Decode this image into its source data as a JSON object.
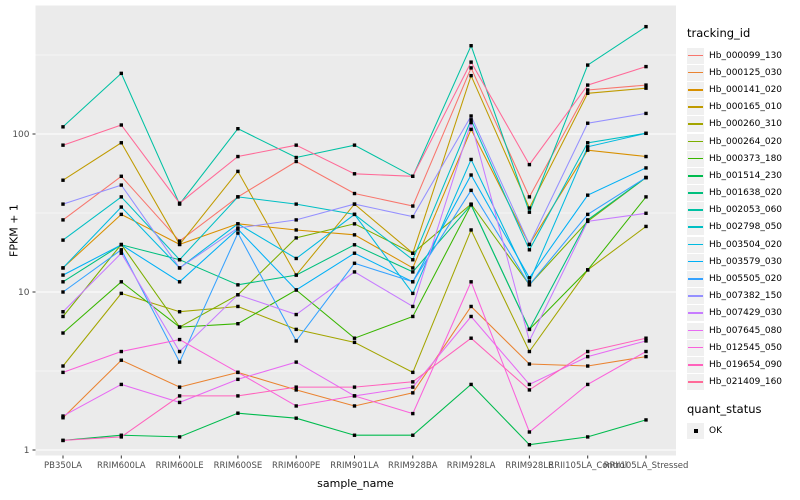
{
  "chart_data": {
    "type": "line",
    "title": "",
    "xlabel": "sample_name",
    "ylabel": "FPKM + 1",
    "y_scale": "log10",
    "y_ticks": [
      1,
      10,
      100
    ],
    "y_minor_ticks": [
      3.162,
      31.62,
      316.2
    ],
    "ylim": [
      0.93,
      700
    ],
    "grid": true,
    "legend_position": "right",
    "legend_title": "tracking_id",
    "x_categories": [
      "PB350LA",
      "RRIM600LA",
      "RRIM600LE",
      "RRIM600SE",
      "RRIM600PE",
      "RRIM901LA",
      "RRIM928BA",
      "RRIM928LA",
      "RRIM928LE",
      "RRII105LA_Control",
      "RRII105LA_Stressed"
    ],
    "series": [
      {
        "name": "Hb_000099_130",
        "color": "#F8766D",
        "values": [
          28.6,
          54,
          21,
          40,
          67,
          42,
          35,
          262,
          40,
          190,
          204
        ]
      },
      {
        "name": "Hb_000125_030",
        "color": "#EA8331",
        "values": [
          1.6,
          3.7,
          2.5,
          3.1,
          2.4,
          1.9,
          2.3,
          8.1,
          3.5,
          3.4,
          3.9
        ]
      },
      {
        "name": "Hb_000141_020",
        "color": "#D89000",
        "values": [
          14.2,
          31,
          20,
          27,
          24.7,
          23,
          14.2,
          107,
          20,
          79,
          72
        ]
      },
      {
        "name": "Hb_000165_010",
        "color": "#C09B00",
        "values": [
          51,
          88,
          20,
          58,
          12.8,
          36,
          17.6,
          234,
          34,
          181,
          195
        ]
      },
      {
        "name": "Hb_000260_310",
        "color": "#A3A500",
        "values": [
          3.4,
          9.8,
          7.5,
          8.1,
          5.8,
          4.8,
          3.1,
          24.7,
          4.2,
          13.8,
          26
        ]
      },
      {
        "name": "Hb_000264_020",
        "color": "#7CAE00",
        "values": [
          7.0,
          20,
          6.0,
          9.6,
          22,
          27,
          17.6,
          36,
          11.1,
          28,
          53
        ]
      },
      {
        "name": "Hb_000373_180",
        "color": "#39B600",
        "values": [
          5.5,
          11.6,
          6.0,
          6.3,
          10.3,
          5.1,
          7.0,
          35.6,
          5.8,
          13.8,
          40
        ]
      },
      {
        "name": "Hb_001514_230",
        "color": "#00BB4E",
        "values": [
          1.15,
          1.24,
          1.21,
          1.71,
          1.59,
          1.24,
          1.24,
          2.6,
          1.08,
          1.21,
          1.55
        ]
      },
      {
        "name": "Hb_001638_020",
        "color": "#00BF7D",
        "values": [
          11.6,
          19.9,
          16,
          11.1,
          12.8,
          19.9,
          13.4,
          35.6,
          5.8,
          28.6,
          53
        ]
      },
      {
        "name": "Hb_002053_060",
        "color": "#00C1A3",
        "values": [
          111,
          242,
          36,
          108,
          71,
          85,
          54,
          362,
          32,
          273,
          478
        ]
      },
      {
        "name": "Hb_002798_050",
        "color": "#00BFC4",
        "values": [
          21.3,
          40,
          16,
          40,
          36,
          31,
          16,
          123,
          18.5,
          88,
          101
        ]
      },
      {
        "name": "Hb_003504_020",
        "color": "#00BAE0",
        "values": [
          14.2,
          34.5,
          14.2,
          27,
          16.3,
          31,
          9.8,
          69,
          11.6,
          83,
          101
        ]
      },
      {
        "name": "Hb_003579_030",
        "color": "#00B0F6",
        "values": [
          12.8,
          19.9,
          11.6,
          25,
          10.3,
          17.6,
          11.6,
          55,
          12.3,
          41,
          61
        ]
      },
      {
        "name": "Hb_005505_020",
        "color": "#35A2FF",
        "values": [
          10.0,
          18.5,
          3.6,
          23.6,
          4.9,
          15.2,
          11.6,
          44,
          11.1,
          31,
          53
        ]
      },
      {
        "name": "Hb_007382_150",
        "color": "#9590FF",
        "values": [
          36,
          47.5,
          14.2,
          25.4,
          28.6,
          36,
          30,
          130,
          20,
          117,
          135
        ]
      },
      {
        "name": "Hb_007429_030",
        "color": "#C77CFF",
        "values": [
          7.5,
          17.6,
          4.2,
          9.6,
          7.2,
          13.4,
          8.1,
          118,
          4.9,
          28,
          31.5
        ]
      },
      {
        "name": "Hb_007645_080",
        "color": "#E76BF3",
        "values": [
          1.64,
          2.6,
          2.0,
          2.8,
          3.6,
          2.2,
          2.5,
          7.0,
          2.6,
          3.9,
          4.9
        ]
      },
      {
        "name": "Hb_012545_050",
        "color": "#FA62DB",
        "values": [
          3.1,
          4.2,
          5.0,
          3.1,
          1.9,
          2.2,
          1.7,
          11.6,
          1.3,
          2.6,
          4.2
        ]
      },
      {
        "name": "Hb_019654_090",
        "color": "#FF62BC",
        "values": [
          1.15,
          1.21,
          2.2,
          2.2,
          2.5,
          2.5,
          2.7,
          5.1,
          2.4,
          4.2,
          5.1
        ]
      },
      {
        "name": "Hb_021409_160",
        "color": "#FF6A98",
        "values": [
          85,
          114,
          36.5,
          72,
          85,
          56,
          54,
          285,
          64,
          204,
          267
        ]
      }
    ],
    "quant_legend": {
      "title": "quant_status",
      "items": [
        {
          "label": "OK",
          "marker": "black-square"
        }
      ]
    }
  },
  "theme": {
    "background": "#FFFFFF",
    "panel_bg": "#EBEBEB",
    "grid_major": "#FFFFFF",
    "grid_minor": "#FFFFFF",
    "axis_text": "#4D4D4D",
    "axis_title": "#000000",
    "tick_mark": "#333333",
    "legend_key_bg": "#F0F0F0",
    "point_color": "#000000"
  }
}
